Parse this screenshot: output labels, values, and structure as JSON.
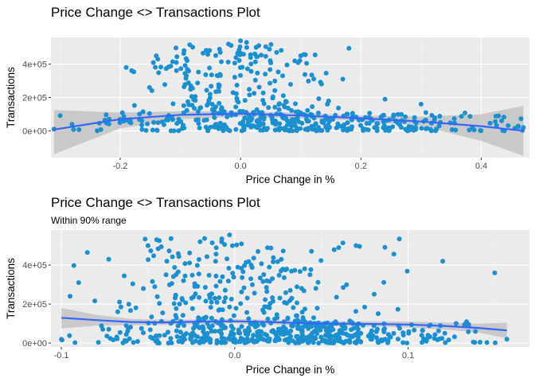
{
  "chart_data": [
    {
      "type": "scatter",
      "title": "Price Change <> Transactions Plot",
      "subtitle": "",
      "xlabel": "Price Change in %",
      "ylabel": "Transactions",
      "xlim": [
        -0.315,
        0.48
      ],
      "ylim": [
        -160000,
        560000
      ],
      "x_ticks": [
        -0.2,
        0.0,
        0.2,
        0.4
      ],
      "x_tick_labels": [
        "-0.2",
        "0.0",
        "0.2",
        "0.4"
      ],
      "y_ticks": [
        0,
        200000,
        400000
      ],
      "y_tick_labels": [
        "0e+00",
        "2e+05",
        "4e+05"
      ],
      "grid": true,
      "point_color": "#1c8fcf",
      "smooth": {
        "color": "#3366ff",
        "band_color": "#bdbdbd",
        "x": [
          -0.31,
          -0.2,
          -0.1,
          0.0,
          0.1,
          0.2,
          0.3,
          0.4,
          0.47
        ],
        "y": [
          8000,
          70000,
          96000,
          103000,
          92000,
          76000,
          56000,
          28000,
          0
        ],
        "lower": [
          -140000,
          15000,
          70000,
          85000,
          75000,
          60000,
          30000,
          -60000,
          -150000
        ],
        "upper": [
          125000,
          110000,
          118000,
          118000,
          108000,
          92000,
          85000,
          100000,
          150000
        ]
      },
      "highlight_points": {
        "x": [
          -0.19,
          -0.14,
          -0.09,
          -0.02,
          0.0,
          0.01,
          0.06,
          0.1,
          0.17,
          0.24,
          0.3,
          0.33,
          0.38,
          0.47,
          -0.31,
          -0.28
        ],
        "y": [
          380000,
          450000,
          330000,
          520000,
          540000,
          530000,
          470000,
          450000,
          310000,
          190000,
          160000,
          30000,
          5000,
          20000,
          10000,
          40000
        ]
      },
      "cloud": {
        "n_dense": 360,
        "dense_x_range": [
          -0.3,
          0.47
        ],
        "dense_y_range": [
          0,
          110000
        ],
        "n_sparse": 200,
        "sparse_x_center": 0.0,
        "sparse_x_spread": 0.12,
        "sparse_y_range": [
          110000,
          520000
        ]
      }
    },
    {
      "type": "scatter",
      "title": "Price Change <> Transactions Plot",
      "subtitle": "Within 90% range",
      "xlabel": "Price Change in %",
      "ylabel": "Transactions",
      "xlim": [
        -0.106,
        0.17
      ],
      "ylim": [
        -20000,
        580000
      ],
      "x_ticks": [
        -0.1,
        0.0,
        0.1
      ],
      "x_tick_labels": [
        "-0.1",
        "0.0",
        "0.1"
      ],
      "y_ticks": [
        0,
        200000,
        400000
      ],
      "y_tick_labels": [
        "0e+00",
        "2e+05",
        "4e+05"
      ],
      "grid": true,
      "point_color": "#1c8fcf",
      "smooth": {
        "color": "#3366ff",
        "band_color": "#bdbdbd",
        "x": [
          -0.1,
          -0.08,
          -0.06,
          -0.04,
          -0.02,
          0.0,
          0.02,
          0.04,
          0.06,
          0.08,
          0.1,
          0.12,
          0.14,
          0.157
        ],
        "y": [
          130000,
          118000,
          108000,
          106000,
          110000,
          112000,
          108000,
          102000,
          100000,
          98000,
          95000,
          88000,
          78000,
          65000
        ],
        "lower": [
          75000,
          90000,
          92000,
          93000,
          98000,
          100000,
          96000,
          90000,
          88000,
          85000,
          80000,
          70000,
          55000,
          25000
        ],
        "upper": [
          180000,
          145000,
          124000,
          119000,
          122000,
          124000,
          120000,
          114000,
          112000,
          111000,
          110000,
          106000,
          100000,
          105000
        ]
      },
      "highlight_points": {
        "x": [
          -0.1,
          -0.09,
          -0.085,
          -0.045,
          -0.05,
          -0.003,
          -0.02,
          0.06,
          0.07,
          0.12,
          0.15,
          0.157,
          -0.095,
          0.03
        ],
        "y": [
          20000,
          310000,
          465000,
          530000,
          500000,
          555000,
          520000,
          490000,
          500000,
          420000,
          360000,
          20000,
          240000,
          380000
        ]
      },
      "cloud": {
        "n_dense": 430,
        "dense_x_range": [
          -0.1,
          0.157
        ],
        "dense_y_range": [
          0,
          110000
        ],
        "n_sparse": 230,
        "sparse_x_center": 0.0,
        "sparse_x_spread": 0.06,
        "sparse_y_range": [
          110000,
          540000
        ]
      }
    }
  ]
}
